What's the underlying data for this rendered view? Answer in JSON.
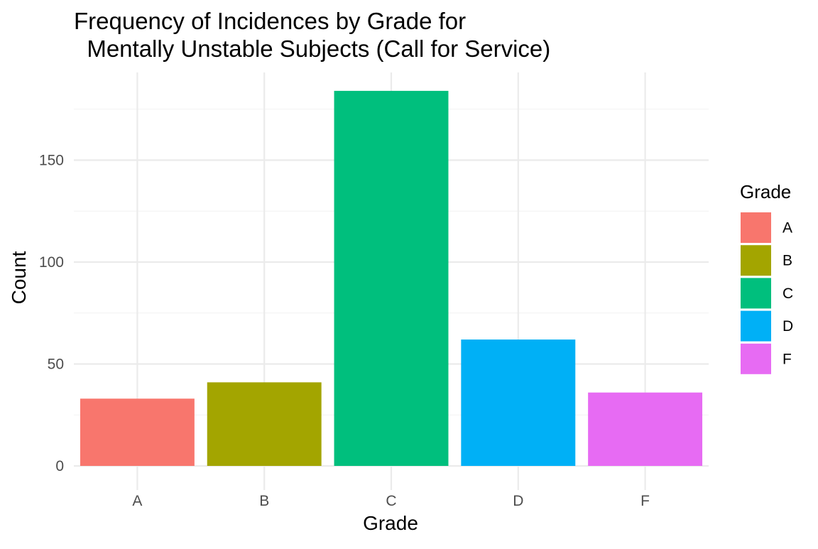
{
  "chart_data": {
    "type": "bar",
    "title_lines": [
      "Frequency of Incidences by Grade for",
      "  Mentally Unstable Subjects (Call for Service)"
    ],
    "xlabel": "Grade",
    "ylabel": "Count",
    "categories": [
      "A",
      "B",
      "C",
      "D",
      "F"
    ],
    "values": [
      33,
      41,
      184,
      62,
      36
    ],
    "colors": [
      "#F8766D",
      "#A3A500",
      "#00BF7D",
      "#00B0F6",
      "#E76BF3"
    ],
    "yticks": [
      0,
      50,
      100,
      150
    ],
    "ylim": [
      0,
      193
    ],
    "grid": true,
    "legend": {
      "title": "Grade",
      "placement": "right",
      "items": [
        "A",
        "B",
        "C",
        "D",
        "F"
      ]
    }
  }
}
